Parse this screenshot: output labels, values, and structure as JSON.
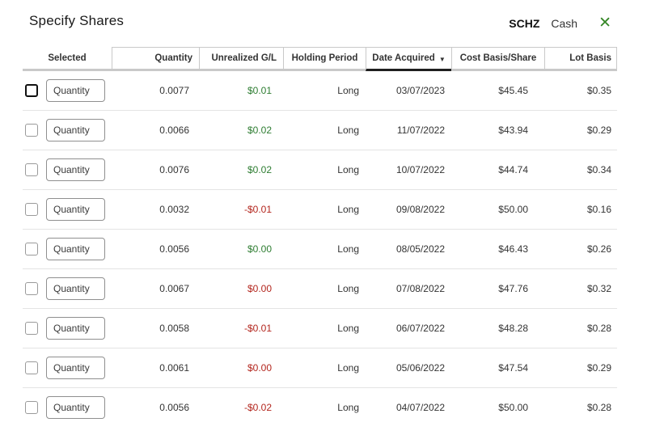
{
  "page": {
    "title": "Specify Shares",
    "symbol": "SCHZ",
    "account_type": "Cash"
  },
  "icons": {
    "close": "✕",
    "sort_descending": "▼"
  },
  "colors": {
    "positive_green": "#2e7d32",
    "negative_red": "#b3261e",
    "accent_green": "#368727"
  },
  "table": {
    "quantity_placeholder": "Quantity",
    "columns": [
      {
        "label": "Selected"
      },
      {
        "label": "Quantity"
      },
      {
        "label": "Unrealized G/L"
      },
      {
        "label": "Holding Period"
      },
      {
        "label": "Date Acquired",
        "sorted": "descending"
      },
      {
        "label": "Cost Basis/Share"
      },
      {
        "label": "Lot Basis"
      }
    ],
    "rows": [
      {
        "quantity": "0.0077",
        "unrealized_gl": "$0.01",
        "gl_sign": "positive",
        "holding_period": "Long",
        "date_acquired": "03/07/2023",
        "cost_basis_share": "$45.45",
        "lot_basis": "$0.35"
      },
      {
        "quantity": "0.0066",
        "unrealized_gl": "$0.02",
        "gl_sign": "positive",
        "holding_period": "Long",
        "date_acquired": "11/07/2022",
        "cost_basis_share": "$43.94",
        "lot_basis": "$0.29"
      },
      {
        "quantity": "0.0076",
        "unrealized_gl": "$0.02",
        "gl_sign": "positive",
        "holding_period": "Long",
        "date_acquired": "10/07/2022",
        "cost_basis_share": "$44.74",
        "lot_basis": "$0.34"
      },
      {
        "quantity": "0.0032",
        "unrealized_gl": "-$0.01",
        "gl_sign": "negative",
        "holding_period": "Long",
        "date_acquired": "09/08/2022",
        "cost_basis_share": "$50.00",
        "lot_basis": "$0.16"
      },
      {
        "quantity": "0.0056",
        "unrealized_gl": "$0.00",
        "gl_sign": "positive",
        "holding_period": "Long",
        "date_acquired": "08/05/2022",
        "cost_basis_share": "$46.43",
        "lot_basis": "$0.26"
      },
      {
        "quantity": "0.0067",
        "unrealized_gl": "$0.00",
        "gl_sign": "negative",
        "holding_period": "Long",
        "date_acquired": "07/08/2022",
        "cost_basis_share": "$47.76",
        "lot_basis": "$0.32"
      },
      {
        "quantity": "0.0058",
        "unrealized_gl": "-$0.01",
        "gl_sign": "negative",
        "holding_period": "Long",
        "date_acquired": "06/07/2022",
        "cost_basis_share": "$48.28",
        "lot_basis": "$0.28"
      },
      {
        "quantity": "0.0061",
        "unrealized_gl": "$0.00",
        "gl_sign": "negative",
        "holding_period": "Long",
        "date_acquired": "05/06/2022",
        "cost_basis_share": "$47.54",
        "lot_basis": "$0.29"
      },
      {
        "quantity": "0.0056",
        "unrealized_gl": "-$0.02",
        "gl_sign": "negative",
        "holding_period": "Long",
        "date_acquired": "04/07/2022",
        "cost_basis_share": "$50.00",
        "lot_basis": "$0.28"
      }
    ]
  }
}
